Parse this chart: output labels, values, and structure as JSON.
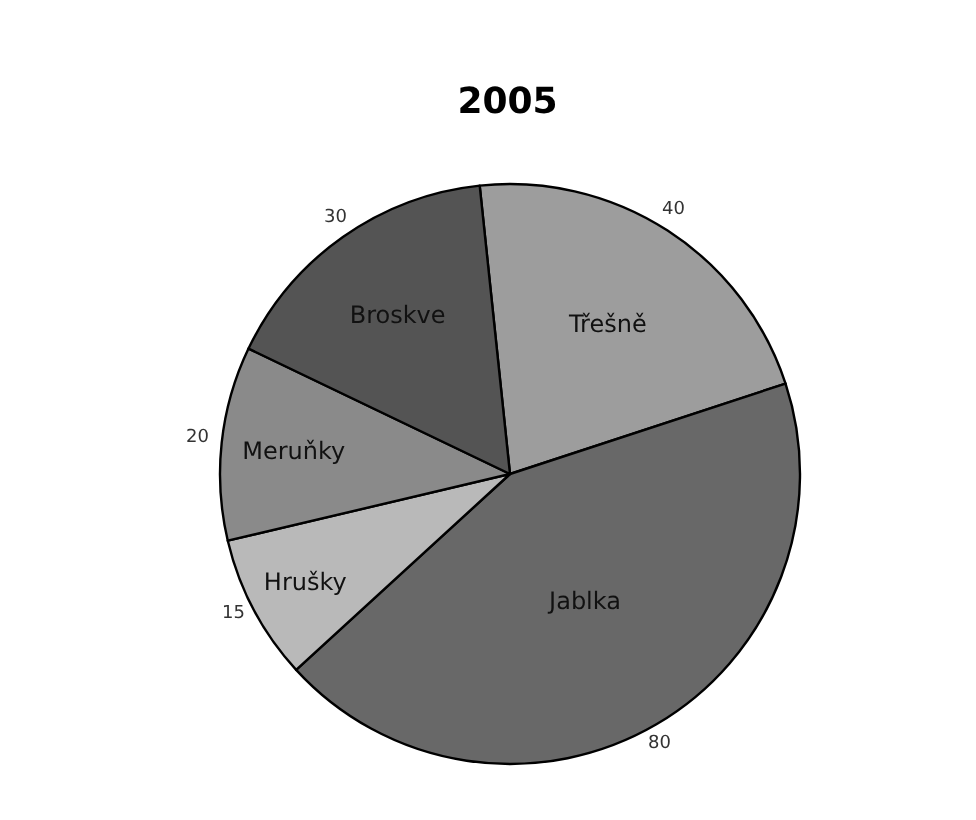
{
  "chart_data": {
    "type": "pie",
    "title": "2005",
    "categories": [
      "Třešně",
      "Jablka",
      "Hrušky",
      "Meruňky",
      "Broskve"
    ],
    "values": [
      40,
      80,
      15,
      20,
      30
    ],
    "colors": [
      "#9d9d9d",
      "#686868",
      "#b9b9b9",
      "#8a8a8a",
      "#545454"
    ],
    "data_labels": true,
    "legend": false
  }
}
